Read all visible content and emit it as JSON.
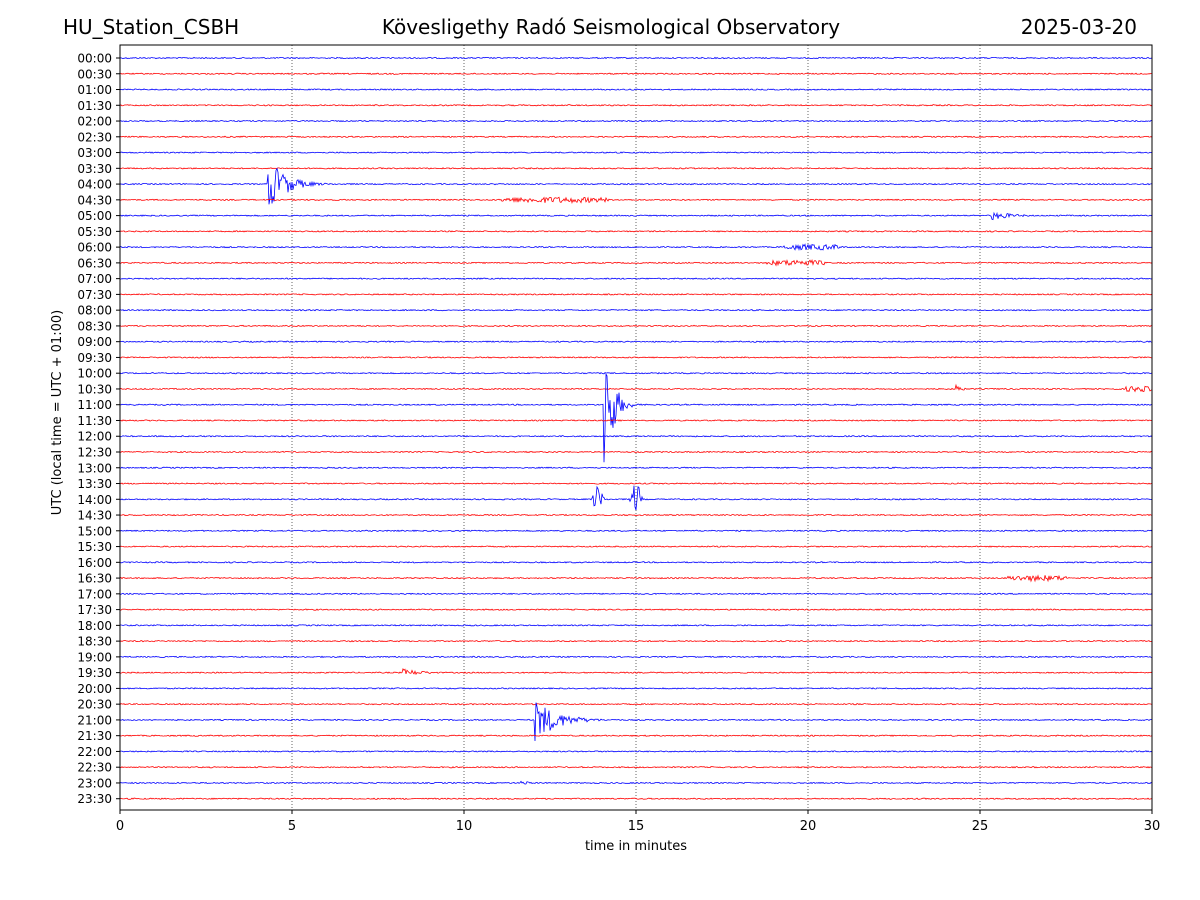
{
  "header": {
    "station": "HU_Station_CSBH",
    "title": "Kövesligethy Radó Seismological Observatory",
    "date": "2025-03-20"
  },
  "chart_data": {
    "type": "line",
    "title": "Kövesligethy Radó Seismological Observatory",
    "xlabel": "time in minutes",
    "ylabel": "UTC (local time = UTC + 01:00)",
    "xlim": [
      0,
      30
    ],
    "x_ticks": [
      0,
      5,
      10,
      15,
      20,
      25,
      30
    ],
    "x_gridlines": [
      5,
      10,
      15,
      20,
      25
    ],
    "grid": "vertical dotted",
    "trace_colors": [
      "#0000ff",
      "#ff0000"
    ],
    "rows": [
      "00:00",
      "00:30",
      "01:00",
      "01:30",
      "02:00",
      "02:30",
      "03:00",
      "03:30",
      "04:00",
      "04:30",
      "05:00",
      "05:30",
      "06:00",
      "06:30",
      "07:00",
      "07:30",
      "08:00",
      "08:30",
      "09:00",
      "09:30",
      "10:00",
      "10:30",
      "11:00",
      "11:30",
      "12:00",
      "12:30",
      "13:00",
      "13:30",
      "14:00",
      "14:30",
      "15:00",
      "15:30",
      "16:00",
      "16:30",
      "17:00",
      "17:30",
      "18:00",
      "18:30",
      "19:00",
      "19:30",
      "20:00",
      "20:30",
      "21:00",
      "21:30",
      "22:00",
      "22:30",
      "23:00",
      "23:30"
    ],
    "events": [
      {
        "row": "04:00",
        "start_min": 4.3,
        "end_min": 7.0,
        "amplitude": 28,
        "shape": "quake"
      },
      {
        "row": "04:30",
        "start_min": 11.1,
        "end_min": 14.2,
        "amplitude": 3,
        "shape": "noise"
      },
      {
        "row": "05:00",
        "start_min": 25.3,
        "end_min": 28.5,
        "amplitude": 5,
        "shape": "quake"
      },
      {
        "row": "06:00",
        "start_min": 19.3,
        "end_min": 21.0,
        "amplitude": 3,
        "shape": "noise"
      },
      {
        "row": "06:30",
        "start_min": 18.8,
        "end_min": 20.5,
        "amplitude": 3,
        "shape": "noise"
      },
      {
        "row": "10:30",
        "start_min": 24.3,
        "end_min": 25.2,
        "amplitude": 5,
        "shape": "quake"
      },
      {
        "row": "10:30",
        "start_min": 29.2,
        "end_min": 30.0,
        "amplitude": 3,
        "shape": "noise"
      },
      {
        "row": "11:00",
        "start_min": 14.05,
        "end_min": 15.3,
        "amplitude": 92,
        "shape": "quake"
      },
      {
        "row": "14:00",
        "start_min": 13.7,
        "end_min": 14.1,
        "amplitude": 14,
        "shape": "burst"
      },
      {
        "row": "14:00",
        "start_min": 14.8,
        "end_min": 15.2,
        "amplitude": 16,
        "shape": "burst"
      },
      {
        "row": "16:30",
        "start_min": 25.8,
        "end_min": 27.5,
        "amplitude": 3,
        "shape": "noise"
      },
      {
        "row": "19:30",
        "start_min": 8.2,
        "end_min": 11.5,
        "amplitude": 4,
        "shape": "quake"
      },
      {
        "row": "21:00",
        "start_min": 12.05,
        "end_min": 15.5,
        "amplitude": 22,
        "shape": "quake"
      },
      {
        "row": "23:00",
        "start_min": 11.6,
        "end_min": 11.9,
        "amplitude": 2,
        "shape": "noise"
      }
    ]
  }
}
